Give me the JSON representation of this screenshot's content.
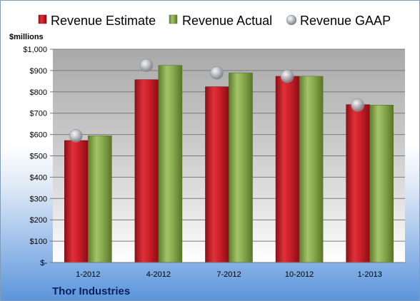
{
  "chart_data": {
    "type": "bar",
    "ylabel": "$millions",
    "company": "Thor Industries",
    "categories": [
      "1-2012",
      "4-2012",
      "7-2012",
      "10-2012",
      "1-2013"
    ],
    "series": [
      {
        "name": "Revenue Estimate",
        "kind": "bar",
        "color": "#cc1f2a",
        "values": [
          572,
          857,
          824,
          873,
          740
        ]
      },
      {
        "name": "Revenue Actual",
        "kind": "bar",
        "color": "#8aab4f",
        "values": [
          594,
          924,
          889,
          873,
          738
        ]
      },
      {
        "name": "Revenue GAAP",
        "kind": "marker",
        "color": "#a9adb3",
        "values": [
          594,
          924,
          889,
          873,
          738
        ]
      }
    ],
    "ylim": [
      0,
      1000
    ],
    "yticks": [
      0,
      100,
      200,
      300,
      400,
      500,
      600,
      700,
      800,
      900,
      1000
    ],
    "ytick_labels": [
      "$-",
      "$100",
      "$200",
      "$300",
      "$400",
      "$500",
      "$600",
      "$700",
      "$800",
      "$900",
      "$1,000"
    ],
    "grid": true,
    "legend": "top"
  }
}
